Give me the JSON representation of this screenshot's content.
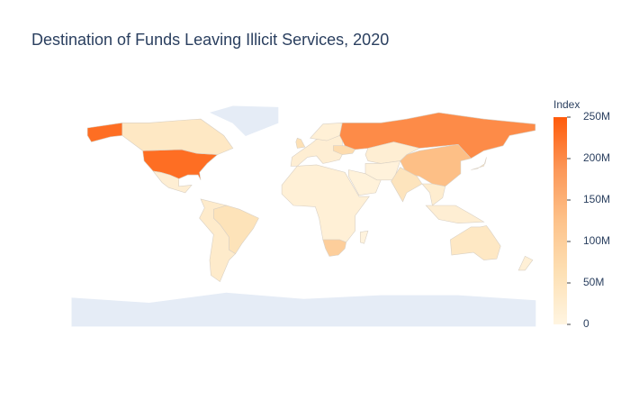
{
  "chart_data": {
    "type": "choropleth",
    "title": "Destination of Funds Leaving Illicit Services, 2020",
    "colorbar_title": "Index",
    "values": [
      230000000,
      40000000,
      20000000,
      55000000,
      30000000,
      20000000,
      15000000,
      60000000,
      70000000,
      200000000,
      130000000,
      20000000,
      10000000,
      8000000,
      50000000,
      25000000,
      20000000,
      40000000,
      15000000,
      100000000,
      5000000,
      40000000,
      15000000
    ],
    "zlim": [
      0,
      250000000
    ],
    "zticks": [
      {
        "value": 0,
        "label": "0"
      },
      {
        "value": 50000000,
        "label": "50M"
      },
      {
        "value": 100000000,
        "label": "100M"
      },
      {
        "value": 150000000,
        "label": "150M"
      },
      {
        "value": 200000000,
        "label": "200M"
      },
      {
        "value": 250000000,
        "label": "250M"
      }
    ],
    "colorscale": [
      "#fff5e1",
      "#fde0b4",
      "#fdc28a",
      "#fc9758",
      "#ff5a0a"
    ]
  }
}
